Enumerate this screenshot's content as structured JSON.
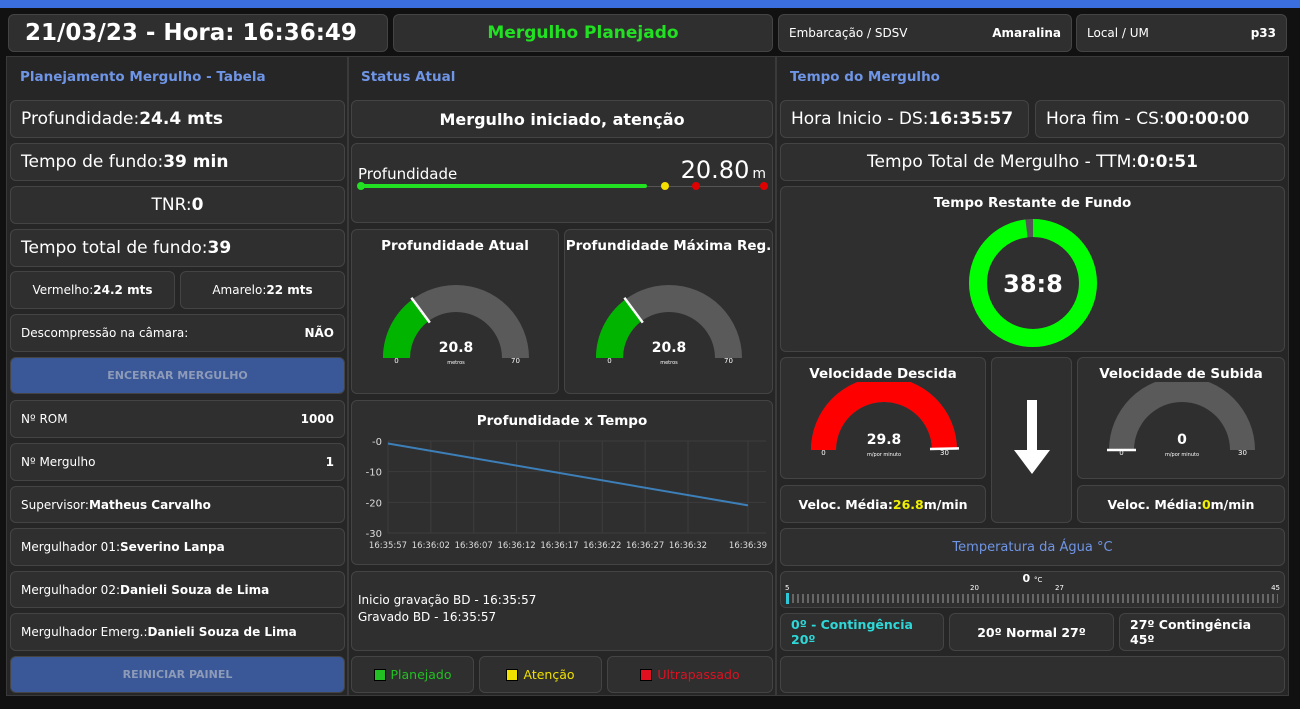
{
  "header": {
    "datetime": "21/03/23 - Hora: 16:36:49",
    "status": "Mergulho Planejado",
    "vessel_label": "Embarcação / SDSV",
    "vessel_value": "Amaralina",
    "local_label": "Local / UM",
    "local_value": "p33"
  },
  "left": {
    "title": "Planejamento Mergulho - Tabela",
    "profundidade_label": "Profundidade: ",
    "profundidade_value": "24.4 mts",
    "tempo_fundo_label": "Tempo de fundo: ",
    "tempo_fundo_value": "39 min",
    "tnr_label": "TNR: ",
    "tnr_value": "0",
    "tempo_total_label": "Tempo total de fundo: ",
    "tempo_total_value": "39",
    "vermelho_label": "Vermelho: ",
    "vermelho_value": "24.2 mts",
    "amarelo_label": "Amarelo: ",
    "amarelo_value": "22 mts",
    "descompressao_label": "Descompressão na câmara:",
    "descompressao_value": "NÃO",
    "encerrar_button": "ENCERRAR MERGULHO",
    "rom_label": "Nº ROM",
    "rom_value": "1000",
    "mergulho_label": "Nº Mergulho",
    "mergulho_value": "1",
    "supervisor_label": "Supervisor: ",
    "supervisor_value": "Matheus Carvalho",
    "merg01_label": "Mergulhador 01: ",
    "merg01_value": "Severino Lanpa",
    "merg02_label": "Mergulhador 02: ",
    "merg02_value": "Danieli Souza de Lima",
    "emerg_label": "Mergulhador Emerg.: ",
    "emerg_value": "Danieli Souza de Lima",
    "reiniciar_button": "REINICIAR PAINEL"
  },
  "middle": {
    "title": "Status Atual",
    "status_message": "Mergulho iniciado, atenção",
    "depth_bar": {
      "label": "Profundidade",
      "value": "20.80",
      "unit": "m",
      "fill_fraction": 0.71
    },
    "gauge_atual": {
      "title": "Profundidade Atual",
      "value": "20.8",
      "unit": "metros",
      "min": "0",
      "max": "70",
      "numeric": 20.8,
      "color": "#00b400"
    },
    "gauge_max": {
      "title": "Profundidade Máxima Reg.",
      "value": "20.8",
      "unit": "metros",
      "min": "0",
      "max": "70",
      "numeric": 20.8,
      "color": "#00b400"
    },
    "log_line1": "Inicio gravação BD - 16:35:57",
    "log_line2": "Gravado BD - 16:35:57",
    "legend": [
      {
        "label": "Planejado",
        "color": "#22c022"
      },
      {
        "label": "Atenção",
        "color": "#f0e000"
      },
      {
        "label": "Ultrapassado",
        "color": "#e01020"
      }
    ]
  },
  "chart_data": {
    "type": "line",
    "title": "Profundidade x Tempo",
    "xlabel": "",
    "ylabel": "",
    "x_ticks": [
      "16:35:57",
      "16:36:02",
      "16:36:07",
      "16:36:12",
      "16:36:17",
      "16:36:22",
      "16:36:27",
      "16:36:32",
      "16:36:39"
    ],
    "y_ticks": [
      "-0",
      "-10",
      "-20",
      "-30"
    ],
    "ylim": [
      -30,
      0
    ],
    "grid": true,
    "series": [
      {
        "x": [
          "16:35:57",
          "16:36:39"
        ],
        "values": [
          -0.8,
          -21
        ]
      }
    ],
    "color": "#3d7fb8"
  },
  "right": {
    "title": "Tempo do Mergulho",
    "hora_inicio_label": "Hora Inicio - DS: ",
    "hora_inicio_value": "16:35:57",
    "hora_fim_label": "Hora fim - CS: ",
    "hora_fim_value": "00:00:00",
    "ttm_label": "Tempo Total de Mergulho - TTM: ",
    "ttm_value": "0:0:51",
    "donut": {
      "title": "Tempo Restante de Fundo",
      "value": "38:8",
      "fraction": 0.98,
      "color": "#00ff00"
    },
    "vel_descida": {
      "title": "Velocidade Descida",
      "value": "29.8",
      "unit": "m/por minuto",
      "min": "0",
      "max": "30",
      "numeric": 29.8,
      "color": "#ff0000"
    },
    "vel_subida": {
      "title": "Velocidade de Subida",
      "value": "0",
      "unit": "m/por minuto",
      "min": "0",
      "max": "30",
      "numeric": 0,
      "color": "#555555"
    },
    "media_descida_label": "Veloc. Média: ",
    "media_descida_value": "26.8",
    "media_descida_unit": " m/min",
    "media_subida_label": "Veloc. Média: ",
    "media_subida_value": "0",
    "media_subida_unit": " m/min",
    "direction_icon": "arrow-down-icon",
    "temp_title": "Temperatura da Água °C",
    "temp_value": "0",
    "temp_unit": "°C",
    "temp_ticks": [
      "5",
      "20",
      "27",
      "45"
    ],
    "range_buttons": [
      "0º - Contingência 20º",
      "20º Normal 27º",
      "27º Contingência 45º"
    ]
  }
}
